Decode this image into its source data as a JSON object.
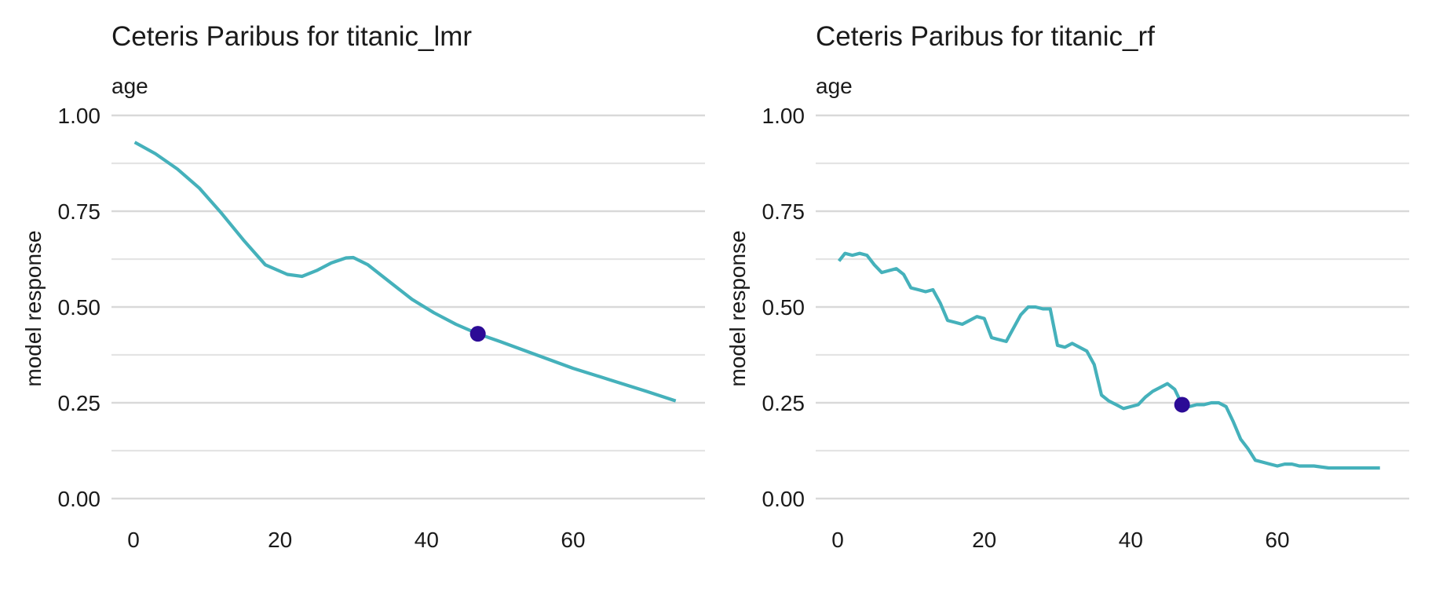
{
  "colors": {
    "line": "#45b1bb",
    "point": "#2c0b96",
    "grid": "#d9d9d9"
  },
  "chart_data": [
    {
      "type": "line",
      "title": "Ceteris Paribus for titanic_lmr",
      "subtitle": "age",
      "xlabel": "",
      "ylabel": "model response",
      "xlim": [
        -3,
        78
      ],
      "ylim": [
        0,
        1
      ],
      "xticks": [
        0,
        20,
        40,
        60
      ],
      "xtick_labels": [
        "0",
        "20",
        "40",
        "60"
      ],
      "yticks": [
        0,
        0.25,
        0.5,
        0.75,
        1
      ],
      "ytick_labels": [
        "0.00",
        "0.25",
        "0.50",
        "0.75",
        "1.00"
      ],
      "grid": true,
      "legend": "none",
      "series": [
        {
          "x": [
            0.17,
            3,
            6,
            9,
            12,
            15,
            18,
            21,
            23,
            25,
            27,
            29,
            30,
            32,
            35,
            38,
            41,
            44,
            47,
            50,
            55,
            60,
            65,
            70,
            74
          ],
          "y": [
            0.93,
            0.9,
            0.86,
            0.81,
            0.745,
            0.675,
            0.61,
            0.585,
            0.58,
            0.595,
            0.615,
            0.628,
            0.629,
            0.61,
            0.565,
            0.52,
            0.485,
            0.455,
            0.43,
            0.41,
            0.375,
            0.34,
            0.31,
            0.28,
            0.255
          ]
        }
      ],
      "observation": {
        "x": 47,
        "y": 0.43
      }
    },
    {
      "type": "line",
      "title": "Ceteris Paribus for titanic_rf",
      "subtitle": "age",
      "xlabel": "",
      "ylabel": "model response",
      "xlim": [
        -3,
        78
      ],
      "ylim": [
        0,
        1
      ],
      "xticks": [
        0,
        20,
        40,
        60
      ],
      "xtick_labels": [
        "0",
        "20",
        "40",
        "60"
      ],
      "yticks": [
        0,
        0.25,
        0.5,
        0.75,
        1
      ],
      "ytick_labels": [
        "0.00",
        "0.25",
        "0.50",
        "0.75",
        "1.00"
      ],
      "grid": true,
      "legend": "none",
      "series": [
        {
          "x": [
            0.17,
            1,
            2,
            3,
            4,
            5,
            6,
            7,
            8,
            9,
            10,
            11,
            12,
            13,
            14,
            15,
            16,
            17,
            18,
            19,
            20,
            21,
            22,
            23,
            24,
            25,
            26,
            27,
            28,
            29,
            30,
            31,
            32,
            33,
            34,
            35,
            36,
            37,
            38,
            39,
            40,
            41,
            42,
            43,
            44,
            45,
            46,
            47,
            48,
            49,
            50,
            51,
            52,
            53,
            54,
            55,
            56,
            57,
            58,
            59,
            60,
            61,
            62,
            63,
            65,
            67,
            70,
            74
          ],
          "y": [
            0.62,
            0.64,
            0.635,
            0.64,
            0.635,
            0.61,
            0.59,
            0.595,
            0.6,
            0.585,
            0.55,
            0.545,
            0.54,
            0.545,
            0.51,
            0.465,
            0.46,
            0.455,
            0.465,
            0.475,
            0.47,
            0.42,
            0.415,
            0.41,
            0.445,
            0.48,
            0.5,
            0.5,
            0.495,
            0.495,
            0.4,
            0.395,
            0.405,
            0.395,
            0.385,
            0.35,
            0.27,
            0.255,
            0.245,
            0.235,
            0.24,
            0.245,
            0.265,
            0.28,
            0.29,
            0.3,
            0.285,
            0.245,
            0.24,
            0.245,
            0.245,
            0.25,
            0.25,
            0.24,
            0.2,
            0.155,
            0.13,
            0.1,
            0.095,
            0.09,
            0.085,
            0.09,
            0.09,
            0.085,
            0.085,
            0.08,
            0.08,
            0.08
          ]
        }
      ],
      "observation": {
        "x": 47,
        "y": 0.245
      }
    }
  ]
}
